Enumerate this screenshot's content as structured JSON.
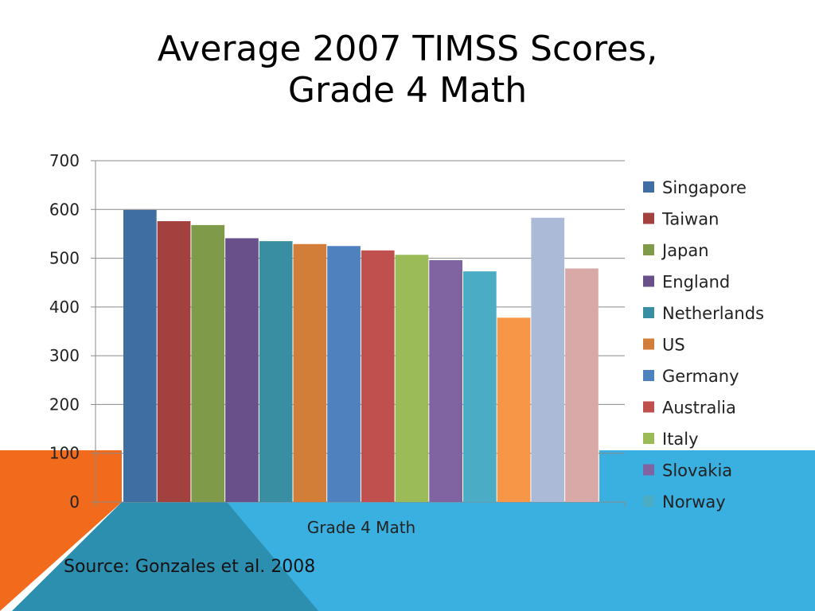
{
  "slide": {
    "title_line1": "Average 2007 TIMSS Scores,",
    "title_line2": "Grade 4 Math",
    "source": "Source: Gonzales et al. 2008"
  },
  "colors": {
    "background_orange": "#f26b1d",
    "background_blue": "#3ab0e0",
    "background_teal": "#2d8fb0"
  },
  "chart_data": {
    "type": "bar",
    "title": "",
    "xlabel": "Grade 4 Math",
    "ylabel": "",
    "ylim": [
      0,
      700
    ],
    "yticks": [
      0,
      100,
      200,
      300,
      400,
      500,
      600,
      700
    ],
    "grid": true,
    "legend_position": "right",
    "categories": [
      "Grade 4 Math"
    ],
    "series": [
      {
        "name": "Singapore",
        "values": [
          599
        ],
        "color": "#3f6ea3"
      },
      {
        "name": "Taiwan",
        "values": [
          576
        ],
        "color": "#a3413e"
      },
      {
        "name": "Japan",
        "values": [
          568
        ],
        "color": "#7f9a48"
      },
      {
        "name": "England",
        "values": [
          541
        ],
        "color": "#69508a"
      },
      {
        "name": "Netherlands",
        "values": [
          535
        ],
        "color": "#3a8ea2"
      },
      {
        "name": "US",
        "values": [
          529
        ],
        "color": "#d27d38"
      },
      {
        "name": "Germany",
        "values": [
          525
        ],
        "color": "#4e81bd"
      },
      {
        "name": "Australia",
        "values": [
          516
        ],
        "color": "#c0504d"
      },
      {
        "name": "Italy",
        "values": [
          507
        ],
        "color": "#9bbb59"
      },
      {
        "name": "Slovakia",
        "values": [
          496
        ],
        "color": "#8064a2"
      },
      {
        "name": "Norway",
        "values": [
          473
        ],
        "color": "#4bacc6"
      },
      {
        "name": "",
        "values": [
          378
        ],
        "color": "#f79646"
      },
      {
        "name": "",
        "values": [
          583
        ],
        "color": "#aabad7"
      },
      {
        "name": "",
        "values": [
          479
        ],
        "color": "#d9a9a8"
      }
    ]
  }
}
